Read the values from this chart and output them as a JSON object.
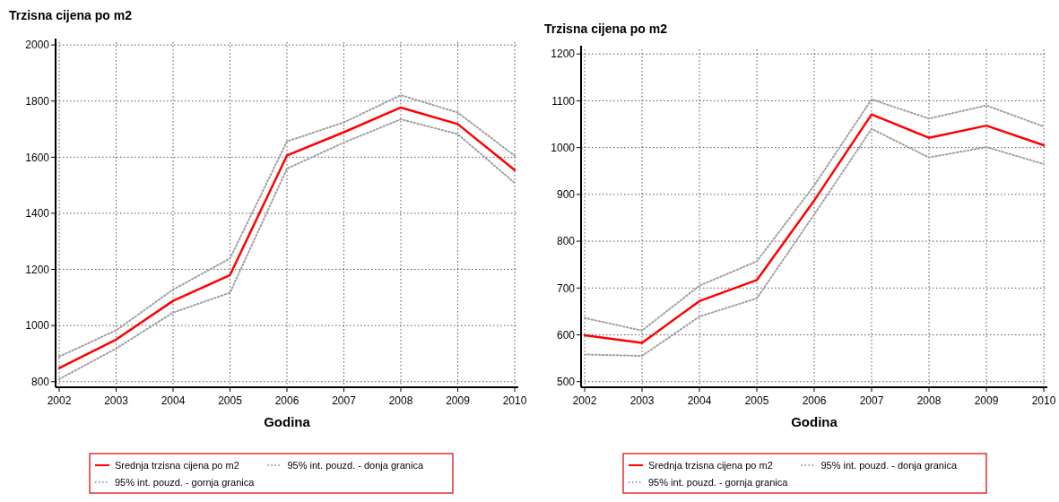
{
  "chart_data": [
    {
      "type": "line",
      "title": "Trzisna cijena po m2",
      "xlabel": "Godina",
      "categories": [
        "2002",
        "2003",
        "2004",
        "2005",
        "2006",
        "2007",
        "2008",
        "2009",
        "2010"
      ],
      "ylim": [
        780,
        2010
      ],
      "yticks": [
        800,
        1000,
        1200,
        1400,
        1600,
        1800,
        2000
      ],
      "grid": true,
      "legend": "bottom",
      "marker": "none",
      "series": [
        {
          "name": "Srednja trzisna cijena po m2",
          "color": "#ff0000",
          "line_style": "solid",
          "values": [
            848,
            950,
            1088,
            1180,
            1606,
            1689,
            1777,
            1718,
            1554
          ]
        },
        {
          "name": "95% int. pouzd. - donja granica",
          "color": "#a0a0a0",
          "line_style": "dotted",
          "values": [
            809,
            918,
            1046,
            1117,
            1559,
            1652,
            1735,
            1682,
            1508
          ]
        },
        {
          "name": "95% int. pouzd. - gornja granica",
          "color": "#a0a0a0",
          "line_style": "dotted",
          "values": [
            889,
            983,
            1128,
            1239,
            1656,
            1724,
            1821,
            1759,
            1605
          ]
        }
      ]
    },
    {
      "type": "line",
      "title": "Trzisna cijena po m2",
      "xlabel": "Godina",
      "categories": [
        "2002",
        "2003",
        "2004",
        "2005",
        "2006",
        "2007",
        "2008",
        "2009",
        "2010"
      ],
      "ylim": [
        488,
        1210
      ],
      "yticks": [
        500,
        600,
        700,
        800,
        900,
        1000,
        1100,
        1200
      ],
      "grid": true,
      "legend": "bottom",
      "marker": "none",
      "series": [
        {
          "name": "Srednja trzisna cijena po m2",
          "color": "#ff0000",
          "line_style": "solid",
          "values": [
            599,
            583,
            672,
            717,
            887,
            1071,
            1021,
            1047,
            1005
          ]
        },
        {
          "name": "95% int. pouzd. - donja granica",
          "color": "#a0a0a0",
          "line_style": "dotted",
          "values": [
            558,
            555,
            639,
            678,
            857,
            1040,
            979,
            1001,
            965
          ]
        },
        {
          "name": "95% int. pouzd. - gornja granica",
          "color": "#a0a0a0",
          "line_style": "dotted",
          "values": [
            636,
            609,
            705,
            757,
            919,
            1103,
            1062,
            1090,
            1045
          ]
        }
      ]
    }
  ]
}
